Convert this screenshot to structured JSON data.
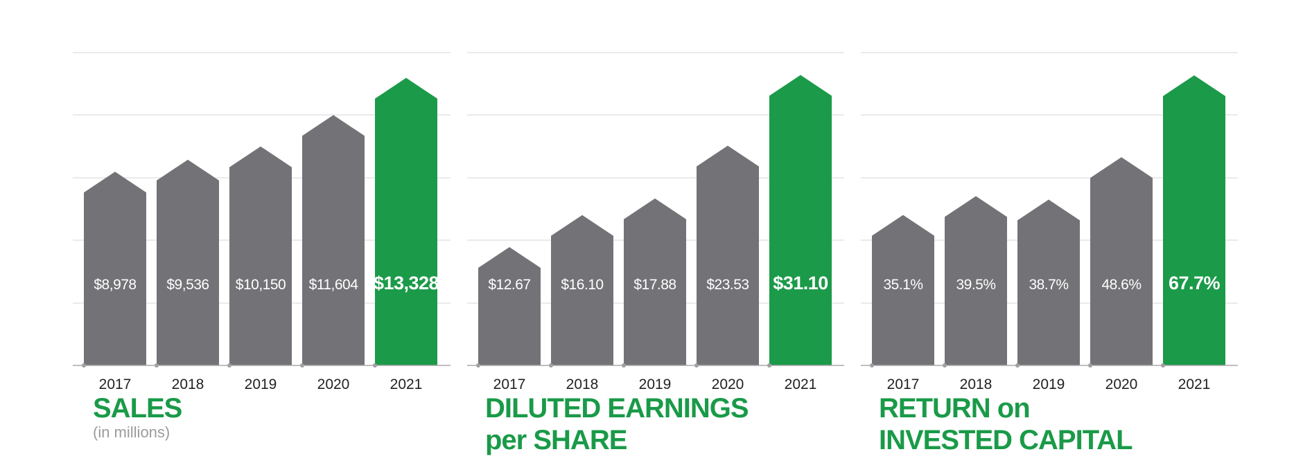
{
  "colors": {
    "bar": "#737377",
    "highlight": "#1b9a49",
    "grid": "#e3e3e3",
    "axis": "#a8a8a8",
    "title": "#1a9a48",
    "subtitle": "#9b9b9b",
    "label_on_bar": "#ffffff",
    "tick": "#222222"
  },
  "chart_data": [
    {
      "type": "bar",
      "title": "SALES",
      "subtitle": "(in millions)",
      "categories": [
        "2017",
        "2018",
        "2019",
        "2020",
        "2021"
      ],
      "values": [
        8978,
        9536,
        10150,
        11604,
        13328
      ],
      "labels": [
        "$8,978",
        "$9,536",
        "$10,150",
        "$11,604",
        "$13,328"
      ],
      "highlight": "2021",
      "ylim": [
        0,
        14500
      ],
      "grid": true
    },
    {
      "type": "bar",
      "title_lines": [
        "DILUTED EARNINGS",
        "per SHARE"
      ],
      "categories": [
        "2017",
        "2018",
        "2019",
        "2020",
        "2021"
      ],
      "values": [
        12.67,
        16.1,
        17.88,
        23.53,
        31.1
      ],
      "labels": [
        "$12.67",
        "$16.10",
        "$17.88",
        "$23.53",
        "$31.10"
      ],
      "highlight": "2021",
      "ylim": [
        0,
        33.5
      ],
      "grid": true
    },
    {
      "type": "bar",
      "title_lines": [
        "RETURN on",
        "INVESTED CAPITAL"
      ],
      "categories": [
        "2017",
        "2018",
        "2019",
        "2020",
        "2021"
      ],
      "values": [
        35.1,
        39.5,
        38.7,
        48.6,
        67.7
      ],
      "labels": [
        "35.1%",
        "39.5%",
        "38.7%",
        "48.6%",
        "67.7%"
      ],
      "highlight": "2021",
      "ylim": [
        0,
        73
      ],
      "grid": true
    }
  ]
}
